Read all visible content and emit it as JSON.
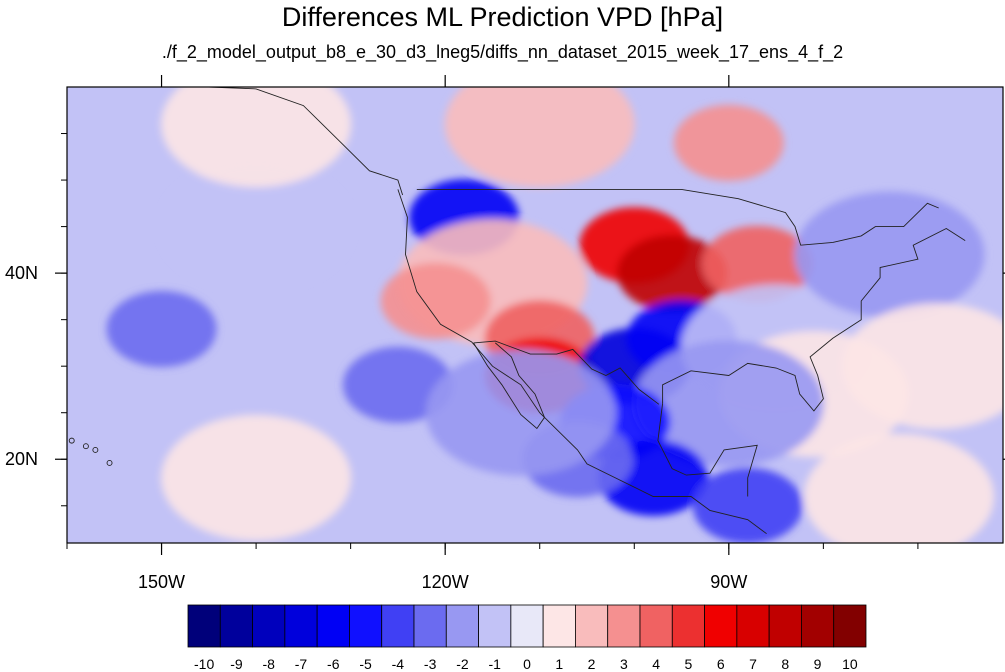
{
  "chart_data": {
    "type": "heatmap",
    "title": "Differences ML Prediction VPD [hPa]",
    "subtitle": "./f_2_model_output_b8_e_30_d3_lneg5/diffs_nn_dataset_2015_week_17_ens_4_f_2",
    "units": "hPa",
    "map_projection": "cylindrical equidistant",
    "lon_range": [
      -160,
      -61
    ],
    "lat_range": [
      11,
      60
    ],
    "x_ticks": [
      {
        "value": -150,
        "label": "150W"
      },
      {
        "value": -120,
        "label": "120W"
      },
      {
        "value": -90,
        "label": "90W"
      }
    ],
    "y_ticks": [
      {
        "value": 20,
        "label": "20N"
      },
      {
        "value": 40,
        "label": "40N"
      }
    ],
    "colorbar": {
      "orientation": "horizontal",
      "labels": [
        "-10",
        "-9",
        "-8",
        "-7",
        "-6",
        "-5",
        "-4",
        "-3",
        "-2",
        "-1",
        "0",
        "1",
        "2",
        "3",
        "4",
        "5",
        "6",
        "7",
        "8",
        "9",
        "10"
      ],
      "colors": [
        "#00007a",
        "#00009c",
        "#0000bd",
        "#0000dc",
        "#0000f5",
        "#1010ff",
        "#4040f4",
        "#6b6bf0",
        "#9898f2",
        "#c2c2f6",
        "#e8e8f8",
        "#fde6e6",
        "#f9bcbc",
        "#f59090",
        "#f06262",
        "#ec3030",
        "#f00000",
        "#d80000",
        "#c00000",
        "#a20000",
        "#820000"
      ]
    },
    "regions": [
      {
        "name": "north pacific ocean",
        "lon": -140,
        "lat": 45,
        "value": -1
      },
      {
        "name": "subtropical pacific band",
        "lon": -150,
        "lat": 34,
        "value": -3
      },
      {
        "name": "open pacific south",
        "lon": -125,
        "lat": 28,
        "value": -3
      },
      {
        "name": "tropical pacific",
        "lon": -140,
        "lat": 18,
        "value": 1
      },
      {
        "name": "gulf of alaska",
        "lon": -140,
        "lat": 56,
        "value": 1
      },
      {
        "name": "western canada",
        "lon": -110,
        "lat": 56,
        "value": 2
      },
      {
        "name": "central canada",
        "lon": -90,
        "lat": 54,
        "value": 3
      },
      {
        "name": "pacific northwest",
        "lon": -118,
        "lat": 46,
        "value": -6
      },
      {
        "name": "northern great plains",
        "lon": -100,
        "lat": 43,
        "value": 6
      },
      {
        "name": "central plains",
        "lon": -96,
        "lat": 40,
        "value": 8
      },
      {
        "name": "midwest",
        "lon": -87,
        "lat": 41,
        "value": 4
      },
      {
        "name": "great basin",
        "lon": -115,
        "lat": 39,
        "value": 2
      },
      {
        "name": "southwest",
        "lon": -110,
        "lat": 33,
        "value": 4
      },
      {
        "name": "sonora",
        "lon": -110,
        "lat": 29,
        "value": 6
      },
      {
        "name": "south texas",
        "lon": -100,
        "lat": 30,
        "value": -7
      },
      {
        "name": "southern plains",
        "lon": -95,
        "lat": 33,
        "value": -6
      },
      {
        "name": "southeast us",
        "lon": -85,
        "lat": 32,
        "value": -1
      },
      {
        "name": "northeast us",
        "lon": -73,
        "lat": 42,
        "value": -2
      },
      {
        "name": "florida",
        "lon": -81,
        "lat": 27,
        "value": 1
      },
      {
        "name": "gulf of mexico",
        "lon": -90,
        "lat": 26,
        "value": -2
      },
      {
        "name": "northern mexico",
        "lon": -102,
        "lat": 24,
        "value": -5
      },
      {
        "name": "southern mexico",
        "lon": -98,
        "lat": 18,
        "value": -6
      },
      {
        "name": "mexico pacific coast",
        "lon": -106,
        "lat": 20,
        "value": -3
      },
      {
        "name": "central america",
        "lon": -88,
        "lat": 15,
        "value": -4
      },
      {
        "name": "caribbean",
        "lon": -72,
        "lat": 16,
        "value": 1
      },
      {
        "name": "western atlantic",
        "lon": -68,
        "lat": 30,
        "value": 1
      },
      {
        "name": "california coast",
        "lon": -121,
        "lat": 37,
        "value": 3
      },
      {
        "name": "western mexico coastal band",
        "lon": -112,
        "lat": 25,
        "value": -2
      }
    ],
    "grid": false,
    "legend": "bottom"
  }
}
